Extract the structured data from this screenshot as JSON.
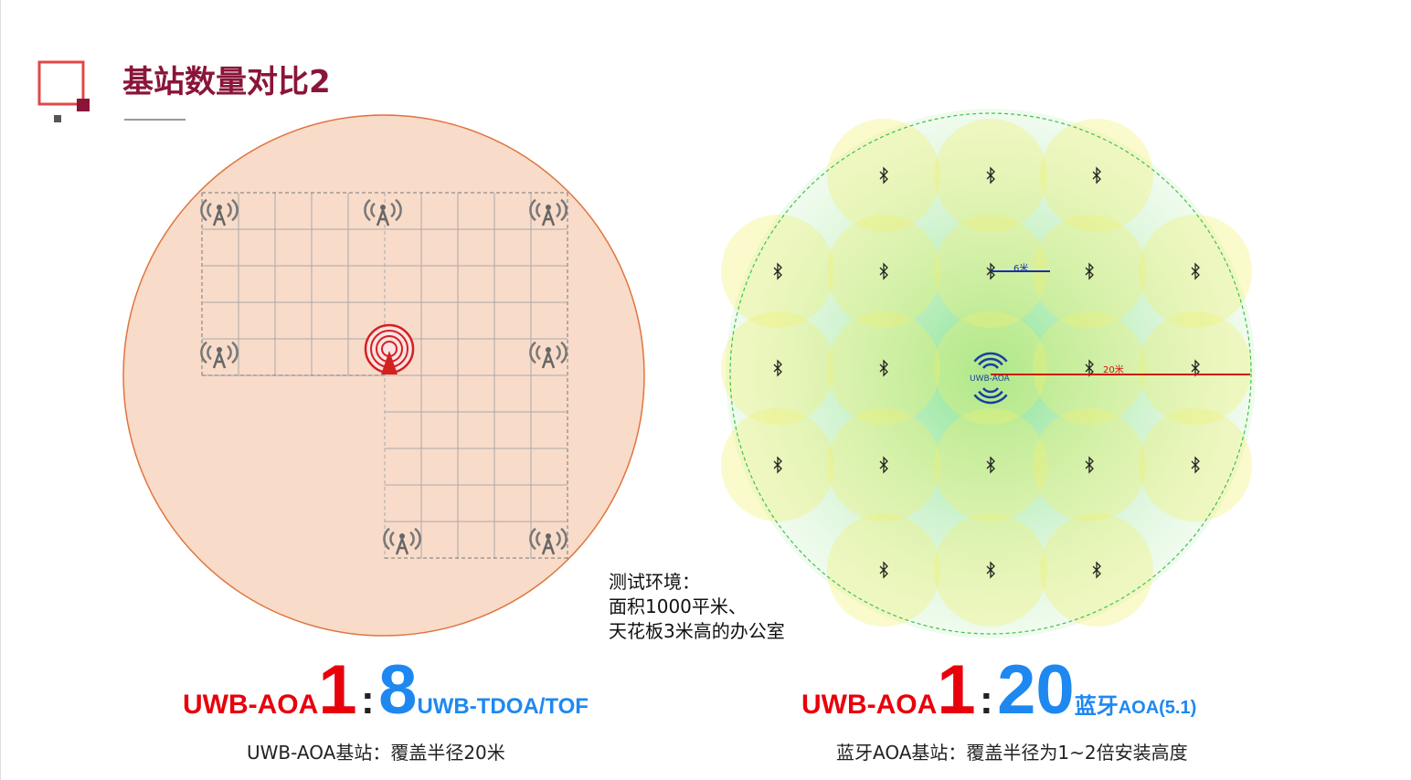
{
  "header": {
    "title": "基站数量对比2"
  },
  "right_diagram": {
    "short_label": "6米",
    "long_label": "20米",
    "center_label": "UWB-AOA"
  },
  "note": {
    "lines": [
      "测试环境：",
      "面积1000平米、",
      "天花板3米高的办公室"
    ]
  },
  "left_ratio": {
    "left_name": "UWB-AOA",
    "left_num": "1",
    "sep": ":",
    "right_num": "8",
    "right_name": "UWB-TDOA/TOF",
    "caption": "UWB-AOA基站：覆盖半径20米"
  },
  "right_ratio": {
    "left_name": "UWB-AOA",
    "left_num": "1",
    "sep": ":",
    "right_num": "20",
    "right_name_a": "蓝牙",
    "right_name_b": "AOA(5.1)",
    "caption": "蓝牙AOA基站：覆盖半径为1~2倍安装高度"
  }
}
